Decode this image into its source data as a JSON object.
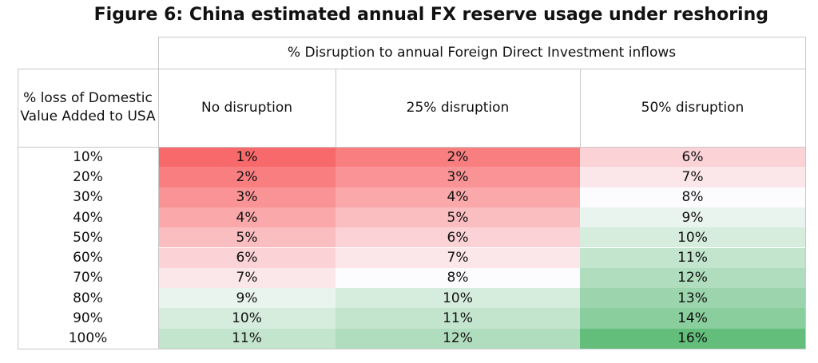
{
  "title": "Figure 6: China estimated annual FX reserve usage under reshoring",
  "chart_data": {
    "type": "heatmap",
    "title": "Figure 6: China estimated annual FX reserve usage under reshoring",
    "column_group_label": "% Disruption to annual Foreign Direct Investment inflows",
    "row_header": "% loss of Domestic Value Added to USA",
    "columns": [
      "No disruption",
      "25% disruption",
      "50% disruption"
    ],
    "rows": [
      "10%",
      "20%",
      "30%",
      "40%",
      "50%",
      "60%",
      "70%",
      "80%",
      "90%",
      "100%"
    ],
    "values": [
      [
        1,
        2,
        6
      ],
      [
        2,
        3,
        7
      ],
      [
        3,
        4,
        8
      ],
      [
        4,
        5,
        9
      ],
      [
        5,
        6,
        10
      ],
      [
        6,
        7,
        11
      ],
      [
        7,
        8,
        12
      ],
      [
        9,
        10,
        13
      ],
      [
        10,
        11,
        14
      ],
      [
        11,
        12,
        16
      ]
    ],
    "labels": [
      [
        "1%",
        "2%",
        "6%"
      ],
      [
        "2%",
        "3%",
        "7%"
      ],
      [
        "3%",
        "4%",
        "8%"
      ],
      [
        "4%",
        "5%",
        "9%"
      ],
      [
        "5%",
        "6%",
        "10%"
      ],
      [
        "6%",
        "7%",
        "11%"
      ],
      [
        "7%",
        "8%",
        "12%"
      ],
      [
        "9%",
        "10%",
        "13%"
      ],
      [
        "10%",
        "11%",
        "14%"
      ],
      [
        "11%",
        "12%",
        "16%"
      ]
    ],
    "color_scale": {
      "low": "#f8696b",
      "mid": "#fcfcff",
      "high": "#63be7b",
      "min": 1,
      "mid_value": 8,
      "max": 16
    }
  }
}
